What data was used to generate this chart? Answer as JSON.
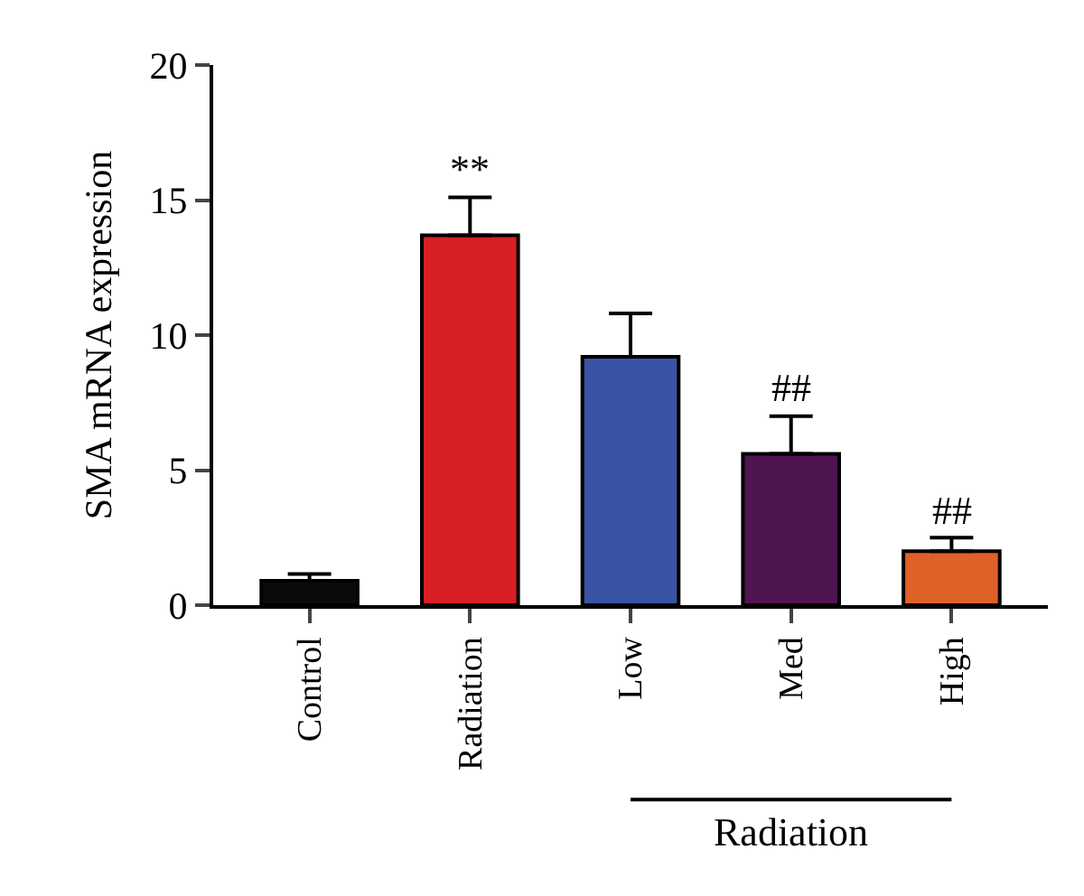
{
  "chart_data": {
    "type": "bar",
    "ylabel": "SMA mRNA expression",
    "categories": [
      "Control",
      "Radiation",
      "Low",
      "Med",
      "High"
    ],
    "values": [
      0.9,
      13.7,
      9.2,
      5.6,
      2.0
    ],
    "colors": [
      "#0a0a0a",
      "#d81f26",
      "#3a53a4",
      "#4f1550",
      "#e06127"
    ],
    "errors": [
      [
        0.9,
        1.15
      ],
      [
        13.7,
        15.1
      ],
      [
        9.2,
        10.8
      ],
      [
        5.6,
        7.0
      ],
      [
        2.0,
        2.5
      ]
    ],
    "ylim": [
      0,
      20
    ],
    "yticks": [
      0,
      5,
      10,
      15,
      20
    ],
    "annotations": [
      {
        "text": "**",
        "x": "Radiation",
        "y": 15.1
      },
      {
        "text": "##",
        "x": "Med",
        "y": 7.0
      },
      {
        "text": "##",
        "x": "High",
        "y": 2.5
      },
      "Radiation"
    ]
  }
}
